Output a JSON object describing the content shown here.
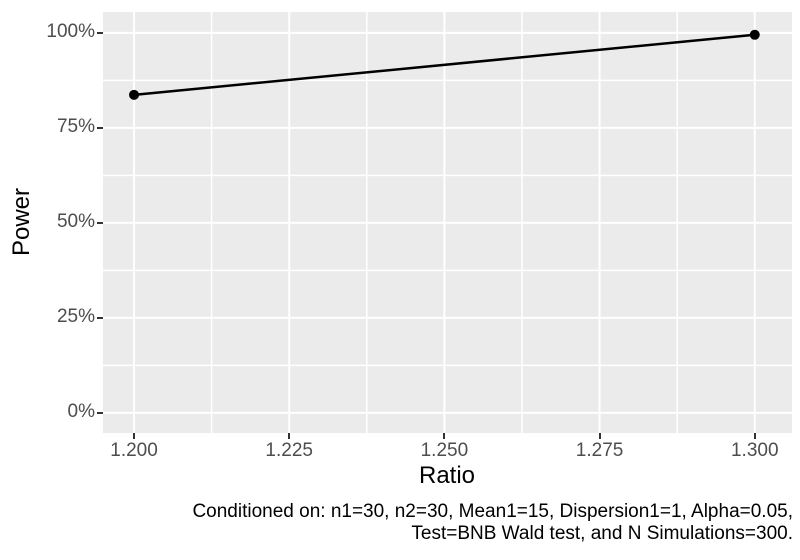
{
  "figure": {
    "kind": "ggplot-style power curve plot"
  },
  "chart_data": {
    "type": "line",
    "title": "",
    "xlabel": "Ratio",
    "ylabel": "Power",
    "x": [
      1.2,
      1.3
    ],
    "series": [
      {
        "name": "Power",
        "values": [
          0.837,
          0.995
        ]
      }
    ],
    "x_ticks": {
      "values": [
        1.2,
        1.225,
        1.25,
        1.275,
        1.3
      ],
      "labels": [
        "1.200",
        "1.225",
        "1.250",
        "1.275",
        "1.300"
      ]
    },
    "y_ticks": {
      "values": [
        0,
        0.25,
        0.5,
        0.75,
        1.0
      ],
      "labels": [
        "0%",
        "25%",
        "50%",
        "75%",
        "100%"
      ]
    },
    "xlim": [
      1.195,
      1.306
    ],
    "ylim": [
      -0.053,
      1.055
    ],
    "grid": {
      "major": true,
      "minor": true
    },
    "legend": "none",
    "caption_lines": [
      "Conditioned on: n1=30, n2=30, Mean1=15, Dispersion1=1, Alpha=0.05,",
      "Test=BNB Wald test, and N Simulations=300."
    ],
    "colors": {
      "panel_bg": "#EBEBEB",
      "gridline": "#FFFFFF",
      "tick_text": "#4D4D4D",
      "axis_title": "#000000",
      "caption_text": "#000000",
      "line": "#000000",
      "point": "#000000",
      "tick_mark": "#333333"
    }
  }
}
